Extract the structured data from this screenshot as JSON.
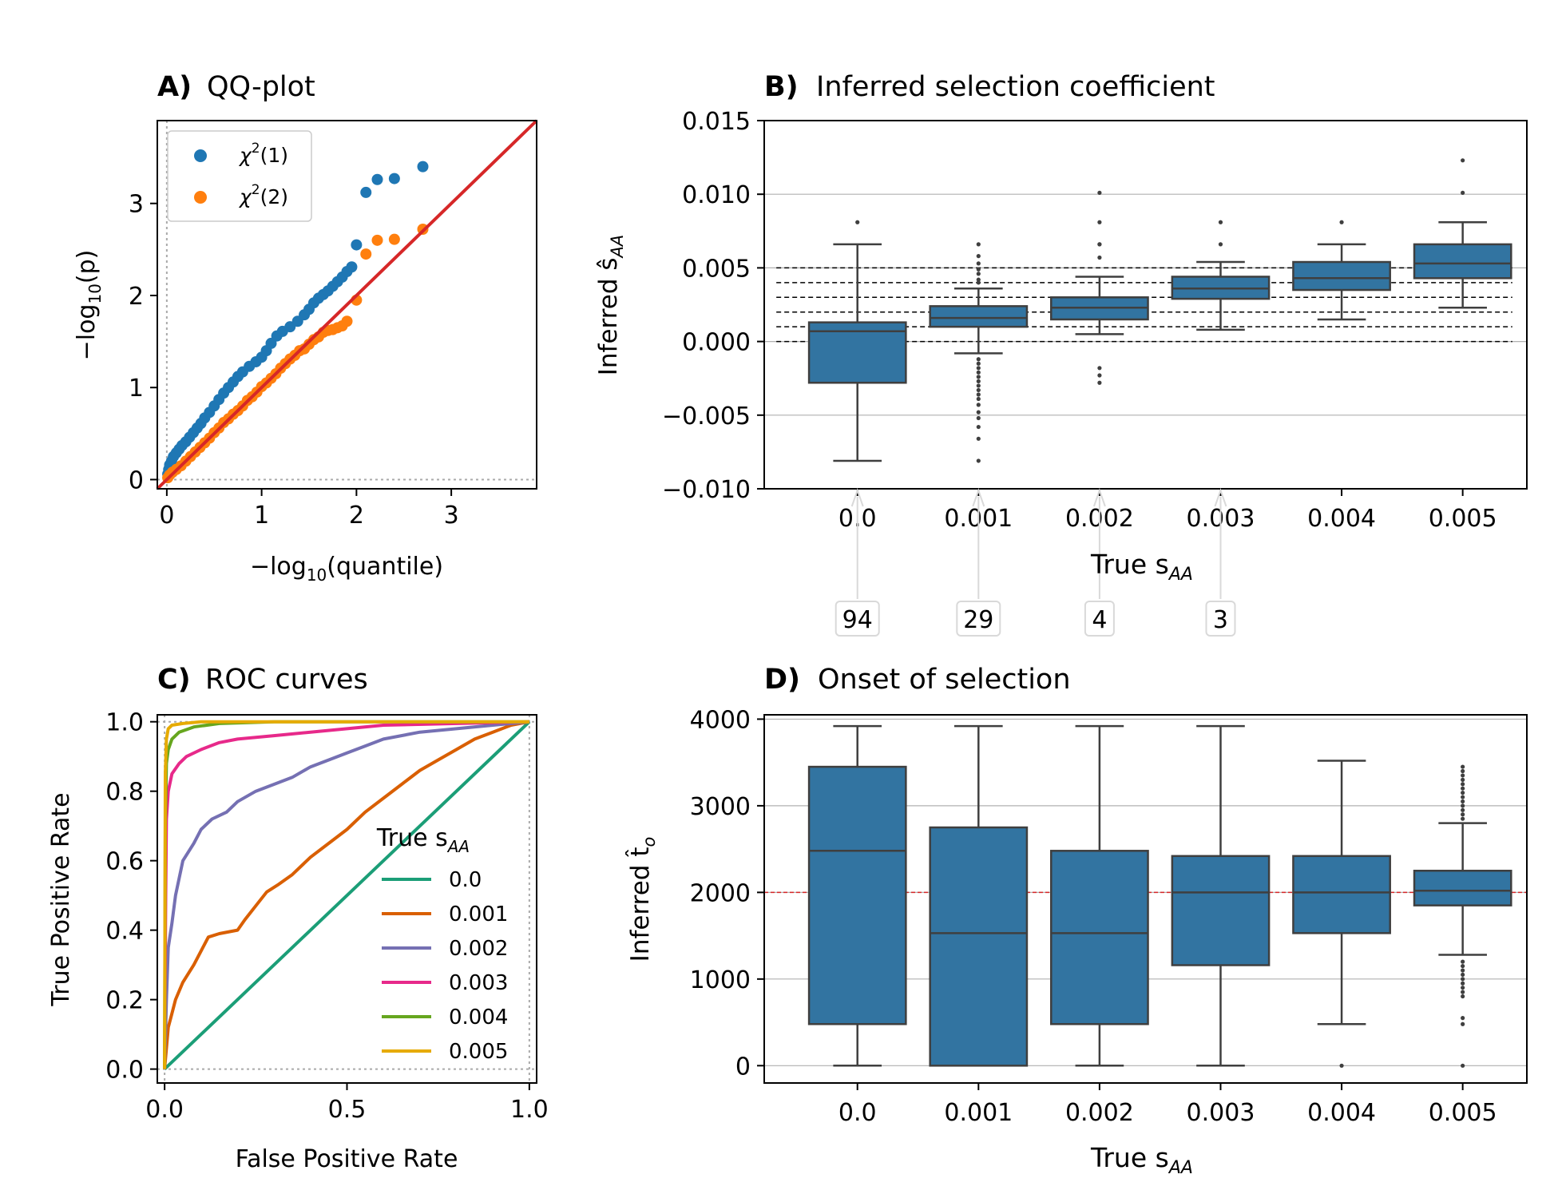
{
  "chart_data": [
    {
      "id": "A",
      "type": "scatter",
      "panel_label": "A)",
      "title": "QQ-plot",
      "xlabel": "−log",
      "xlabel_sub": "10",
      "xlabel_rest": "(quantile)",
      "ylabel": "−log",
      "ylabel_sub": "10",
      "ylabel_rest": "(p)",
      "xlim": [
        -0.1,
        3.9
      ],
      "ylim": [
        -0.1,
        3.9
      ],
      "xticks": [
        0,
        1,
        2,
        3
      ],
      "yticks": [
        0,
        1,
        2,
        3
      ],
      "legend": {
        "position": "upper-left",
        "entries": [
          {
            "base": "χ",
            "sup": "2",
            "rest": "(1)"
          },
          {
            "base": "χ",
            "sup": "2",
            "rest": "(2)"
          }
        ]
      },
      "series": [
        {
          "color": "#1f77b4",
          "points": [
            [
              0.01,
              0.06
            ],
            [
              0.02,
              0.11
            ],
            [
              0.03,
              0.16
            ],
            [
              0.05,
              0.2
            ],
            [
              0.07,
              0.25
            ],
            [
              0.1,
              0.29
            ],
            [
              0.13,
              0.33
            ],
            [
              0.16,
              0.37
            ],
            [
              0.2,
              0.41
            ],
            [
              0.24,
              0.46
            ],
            [
              0.28,
              0.51
            ],
            [
              0.32,
              0.56
            ],
            [
              0.36,
              0.61
            ],
            [
              0.4,
              0.67
            ],
            [
              0.45,
              0.73
            ],
            [
              0.5,
              0.8
            ],
            [
              0.55,
              0.87
            ],
            [
              0.6,
              0.94
            ],
            [
              0.65,
              1.0
            ],
            [
              0.7,
              1.06
            ],
            [
              0.75,
              1.12
            ],
            [
              0.8,
              1.17
            ],
            [
              0.87,
              1.23
            ],
            [
              0.94,
              1.28
            ],
            [
              1.0,
              1.33
            ],
            [
              1.05,
              1.4
            ],
            [
              1.1,
              1.48
            ],
            [
              1.16,
              1.56
            ],
            [
              1.22,
              1.61
            ],
            [
              1.3,
              1.66
            ],
            [
              1.38,
              1.72
            ],
            [
              1.45,
              1.79
            ],
            [
              1.5,
              1.85
            ],
            [
              1.55,
              1.92
            ],
            [
              1.6,
              1.97
            ],
            [
              1.65,
              2.01
            ],
            [
              1.7,
              2.05
            ],
            [
              1.75,
              2.1
            ],
            [
              1.8,
              2.15
            ],
            [
              1.85,
              2.2
            ],
            [
              1.9,
              2.26
            ],
            [
              1.95,
              2.31
            ],
            [
              2.0,
              2.55
            ],
            [
              2.1,
              3.12
            ],
            [
              2.22,
              3.26
            ],
            [
              2.4,
              3.27
            ],
            [
              2.7,
              3.4
            ]
          ]
        },
        {
          "color": "#ff7f0e",
          "points": [
            [
              0.01,
              0.02
            ],
            [
              0.03,
              0.05
            ],
            [
              0.06,
              0.08
            ],
            [
              0.1,
              0.11
            ],
            [
              0.15,
              0.15
            ],
            [
              0.2,
              0.2
            ],
            [
              0.25,
              0.25
            ],
            [
              0.3,
              0.3
            ],
            [
              0.35,
              0.35
            ],
            [
              0.4,
              0.4
            ],
            [
              0.45,
              0.45
            ],
            [
              0.5,
              0.51
            ],
            [
              0.55,
              0.56
            ],
            [
              0.6,
              0.62
            ],
            [
              0.65,
              0.66
            ],
            [
              0.7,
              0.71
            ],
            [
              0.75,
              0.75
            ],
            [
              0.8,
              0.8
            ],
            [
              0.85,
              0.86
            ],
            [
              0.9,
              0.9
            ],
            [
              0.95,
              0.95
            ],
            [
              1.0,
              1.01
            ],
            [
              1.05,
              1.05
            ],
            [
              1.1,
              1.1
            ],
            [
              1.15,
              1.15
            ],
            [
              1.2,
              1.21
            ],
            [
              1.25,
              1.26
            ],
            [
              1.3,
              1.31
            ],
            [
              1.35,
              1.35
            ],
            [
              1.4,
              1.4
            ],
            [
              1.45,
              1.42
            ],
            [
              1.5,
              1.47
            ],
            [
              1.55,
              1.52
            ],
            [
              1.6,
              1.55
            ],
            [
              1.65,
              1.6
            ],
            [
              1.7,
              1.62
            ],
            [
              1.75,
              1.63
            ],
            [
              1.8,
              1.65
            ],
            [
              1.85,
              1.67
            ],
            [
              1.9,
              1.72
            ],
            [
              2.0,
              1.95
            ],
            [
              2.1,
              2.45
            ],
            [
              2.22,
              2.6
            ],
            [
              2.4,
              2.61
            ],
            [
              2.7,
              2.72
            ]
          ]
        }
      ],
      "reference_line_color": "#d62728"
    },
    {
      "id": "B",
      "type": "box",
      "panel_label": "B)",
      "title": "Inferred selection coefficient",
      "xlabel": "True s",
      "xlabel_sub": "AA",
      "ylabel": "Inferred ŝ",
      "ylabel_sub": "AA",
      "categories": [
        "0.0",
        "0.001",
        "0.002",
        "0.003",
        "0.004",
        "0.005"
      ],
      "ylim": [
        -0.01,
        0.015
      ],
      "yticks": [
        -0.01,
        -0.005,
        0.0,
        0.005,
        0.01,
        0.015
      ],
      "ytick_labels": [
        "−0.010",
        "−0.005",
        "0.000",
        "0.005",
        "0.010",
        "0.015"
      ],
      "grid": "y",
      "box_color": "#3274a1",
      "reference_lines": [
        0.0,
        0.001,
        0.002,
        0.003,
        0.004,
        0.005
      ],
      "boxes": [
        {
          "q1": -0.0028,
          "median": 0.0007,
          "q3": 0.0013,
          "whislo": -0.0081,
          "whishi": 0.0066,
          "fliers": [
            0.0081,
            -0.0101
          ]
        },
        {
          "q1": 0.001,
          "median": 0.0016,
          "q3": 0.0024,
          "whislo": -0.0008,
          "whishi": 0.0036,
          "fliers": [
            0.0066,
            0.0058,
            0.0053,
            0.0049,
            0.0046,
            0.0042,
            0.004,
            -0.0012,
            -0.0015,
            -0.0018,
            -0.0021,
            -0.0024,
            -0.0027,
            -0.003,
            -0.0033,
            -0.0036,
            -0.0039,
            -0.0043,
            -0.0048,
            -0.0052,
            -0.0058,
            -0.0066,
            -0.0081,
            -0.0101
          ]
        },
        {
          "q1": 0.0015,
          "median": 0.0023,
          "q3": 0.003,
          "whislo": 0.0005,
          "whishi": 0.0044,
          "fliers": [
            0.0101,
            0.0081,
            0.0066,
            0.0066,
            0.0057,
            -0.0018,
            -0.0023,
            -0.0028
          ]
        },
        {
          "q1": 0.0029,
          "median": 0.0036,
          "q3": 0.0044,
          "whislo": 0.0008,
          "whishi": 0.0054,
          "fliers": [
            0.0081,
            0.0066
          ]
        },
        {
          "q1": 0.0035,
          "median": 0.0043,
          "q3": 0.0054,
          "whislo": 0.0015,
          "whishi": 0.0066,
          "fliers": [
            0.0081
          ]
        },
        {
          "q1": 0.0043,
          "median": 0.0053,
          "q3": 0.0066,
          "whislo": 0.0023,
          "whishi": 0.0081,
          "fliers": [
            0.0101,
            0.0123
          ]
        }
      ],
      "offscale_annotations": [
        {
          "category": "0.0",
          "label": "94"
        },
        {
          "category": "0.001",
          "label": "29"
        },
        {
          "category": "0.002",
          "label": "4"
        },
        {
          "category": "0.003",
          "label": "3"
        }
      ]
    },
    {
      "id": "C",
      "type": "line",
      "panel_label": "C)",
      "title": "ROC curves",
      "xlabel": "False Positive Rate",
      "ylabel": "True Positive Rate",
      "xlim": [
        -0.02,
        1.02
      ],
      "ylim": [
        -0.04,
        1.02
      ],
      "xticks": [
        0.0,
        0.5,
        1.0
      ],
      "xtick_labels": [
        "0.0",
        "0.5",
        "1.0"
      ],
      "yticks": [
        0.0,
        0.2,
        0.4,
        0.6,
        0.8,
        1.0
      ],
      "ytick_labels": [
        "0.0",
        "0.2",
        "0.4",
        "0.6",
        "0.8",
        "1.0"
      ],
      "legend": {
        "title": "True s",
        "title_sub": "AA",
        "position": "lower-right"
      },
      "series": [
        {
          "name": "0.0",
          "color": "#1b9e77",
          "points": [
            [
              0,
              0
            ],
            [
              1,
              1
            ]
          ]
        },
        {
          "name": "0.001",
          "color": "#d95f02",
          "points": [
            [
              0,
              0
            ],
            [
              0.01,
              0.12
            ],
            [
              0.02,
              0.16
            ],
            [
              0.03,
              0.2
            ],
            [
              0.05,
              0.25
            ],
            [
              0.08,
              0.3
            ],
            [
              0.1,
              0.34
            ],
            [
              0.12,
              0.38
            ],
            [
              0.15,
              0.39
            ],
            [
              0.2,
              0.4
            ],
            [
              0.22,
              0.43
            ],
            [
              0.25,
              0.47
            ],
            [
              0.28,
              0.51
            ],
            [
              0.31,
              0.53
            ],
            [
              0.35,
              0.56
            ],
            [
              0.4,
              0.61
            ],
            [
              0.45,
              0.65
            ],
            [
              0.5,
              0.69
            ],
            [
              0.55,
              0.74
            ],
            [
              0.6,
              0.78
            ],
            [
              0.65,
              0.82
            ],
            [
              0.7,
              0.86
            ],
            [
              0.75,
              0.89
            ],
            [
              0.8,
              0.92
            ],
            [
              0.85,
              0.95
            ],
            [
              0.9,
              0.97
            ],
            [
              0.95,
              0.99
            ],
            [
              1,
              1
            ]
          ]
        },
        {
          "name": "0.002",
          "color": "#7570b3",
          "points": [
            [
              0,
              0
            ],
            [
              0.005,
              0.2
            ],
            [
              0.01,
              0.35
            ],
            [
              0.02,
              0.42
            ],
            [
              0.03,
              0.5
            ],
            [
              0.05,
              0.6
            ],
            [
              0.08,
              0.65
            ],
            [
              0.1,
              0.69
            ],
            [
              0.13,
              0.72
            ],
            [
              0.17,
              0.74
            ],
            [
              0.2,
              0.77
            ],
            [
              0.25,
              0.8
            ],
            [
              0.3,
              0.82
            ],
            [
              0.35,
              0.84
            ],
            [
              0.4,
              0.87
            ],
            [
              0.45,
              0.89
            ],
            [
              0.5,
              0.91
            ],
            [
              0.55,
              0.93
            ],
            [
              0.6,
              0.95
            ],
            [
              0.7,
              0.97
            ],
            [
              0.8,
              0.98
            ],
            [
              0.9,
              0.99
            ],
            [
              1,
              1
            ]
          ]
        },
        {
          "name": "0.003",
          "color": "#e7298a",
          "points": [
            [
              0,
              0
            ],
            [
              0.003,
              0.5
            ],
            [
              0.005,
              0.72
            ],
            [
              0.01,
              0.8
            ],
            [
              0.02,
              0.85
            ],
            [
              0.04,
              0.88
            ],
            [
              0.06,
              0.9
            ],
            [
              0.1,
              0.92
            ],
            [
              0.15,
              0.94
            ],
            [
              0.2,
              0.95
            ],
            [
              0.3,
              0.96
            ],
            [
              0.4,
              0.97
            ],
            [
              0.5,
              0.98
            ],
            [
              0.6,
              0.99
            ],
            [
              0.8,
              0.995
            ],
            [
              1,
              1
            ]
          ]
        },
        {
          "name": "0.004",
          "color": "#66a61e",
          "points": [
            [
              0,
              0
            ],
            [
              0.002,
              0.7
            ],
            [
              0.005,
              0.88
            ],
            [
              0.01,
              0.92
            ],
            [
              0.02,
              0.95
            ],
            [
              0.04,
              0.97
            ],
            [
              0.08,
              0.985
            ],
            [
              0.15,
              0.995
            ],
            [
              0.3,
              1.0
            ],
            [
              1,
              1
            ]
          ]
        },
        {
          "name": "0.005",
          "color": "#e6ab02",
          "points": [
            [
              0,
              0
            ],
            [
              0.002,
              0.85
            ],
            [
              0.005,
              0.95
            ],
            [
              0.01,
              0.98
            ],
            [
              0.02,
              0.99
            ],
            [
              0.05,
              0.995
            ],
            [
              0.1,
              1.0
            ],
            [
              1,
              1
            ]
          ]
        }
      ]
    },
    {
      "id": "D",
      "type": "box",
      "panel_label": "D)",
      "title": "Onset of selection",
      "xlabel": "True s",
      "xlabel_sub": "AA",
      "ylabel": "Inferred t̂",
      "ylabel_sub": "o",
      "categories": [
        "0.0",
        "0.001",
        "0.002",
        "0.003",
        "0.004",
        "0.005"
      ],
      "ylim": [
        -200,
        4050
      ],
      "yticks": [
        0,
        1000,
        2000,
        3000,
        4000
      ],
      "ytick_labels": [
        "0",
        "1000",
        "2000",
        "3000",
        "4000"
      ],
      "grid": "y",
      "box_color": "#3274a1",
      "reference_value": 2000,
      "reference_color": "#d62728",
      "boxes": [
        {
          "q1": 480,
          "median": 2480,
          "q3": 3450,
          "whislo": 0,
          "whishi": 3920,
          "fliers": []
        },
        {
          "q1": 0,
          "median": 1530,
          "q3": 2750,
          "whislo": 0,
          "whishi": 3920,
          "fliers": []
        },
        {
          "q1": 480,
          "median": 1530,
          "q3": 2480,
          "whislo": 0,
          "whishi": 3920,
          "fliers": []
        },
        {
          "q1": 1160,
          "median": 2000,
          "q3": 2420,
          "whislo": 0,
          "whishi": 3920,
          "fliers": []
        },
        {
          "q1": 1530,
          "median": 2000,
          "q3": 2420,
          "whislo": 480,
          "whishi": 3520,
          "fliers": [
            0
          ]
        },
        {
          "q1": 1850,
          "median": 2020,
          "q3": 2250,
          "whislo": 1280,
          "whishi": 2800,
          "fliers": [
            3450,
            3400,
            3350,
            3300,
            3250,
            3200,
            3150,
            3100,
            3050,
            3000,
            2950,
            2900,
            2850,
            1200,
            1150,
            1100,
            1050,
            1000,
            950,
            900,
            850,
            800,
            550,
            480,
            0
          ]
        }
      ]
    }
  ]
}
